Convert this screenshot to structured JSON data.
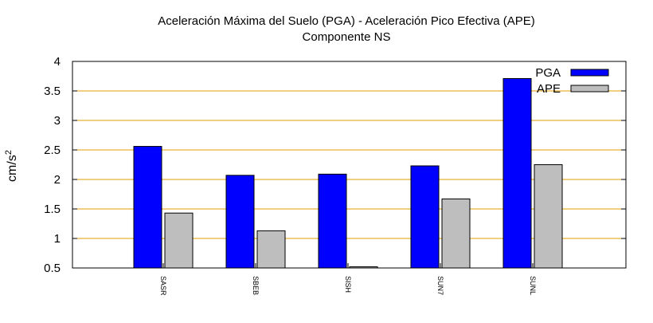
{
  "chart_data": {
    "type": "bar",
    "title": "Aceleración Máxima del Suelo (PGA) -  Aceleración Pico Efectiva (APE)",
    "subtitle": "Componente NS",
    "ylabel_base": "cm/s",
    "ylabel_exp": "2",
    "xlabel": "",
    "ylim": [
      0.5,
      4
    ],
    "yticks": [
      0.5,
      1,
      1.5,
      2,
      2.5,
      3,
      3.5,
      4
    ],
    "ytick_labels": [
      "0.5",
      "1",
      "1.5",
      "2",
      "2.5",
      "3",
      "3.5",
      "4"
    ],
    "grid": true,
    "legend_position": "top-right",
    "categories": [
      "SASR",
      "SBEB",
      "SISH",
      "SUN7",
      "SUNL"
    ],
    "series": [
      {
        "name": "PGA",
        "color": "#0000ff",
        "values": [
          2.56,
          2.07,
          2.09,
          2.23,
          3.71
        ]
      },
      {
        "name": "APE",
        "color": "#bebebe",
        "values": [
          1.43,
          1.13,
          0.52,
          1.67,
          2.25
        ]
      }
    ],
    "colors": {
      "grid": "#e0a000",
      "axis": "#000000"
    }
  }
}
